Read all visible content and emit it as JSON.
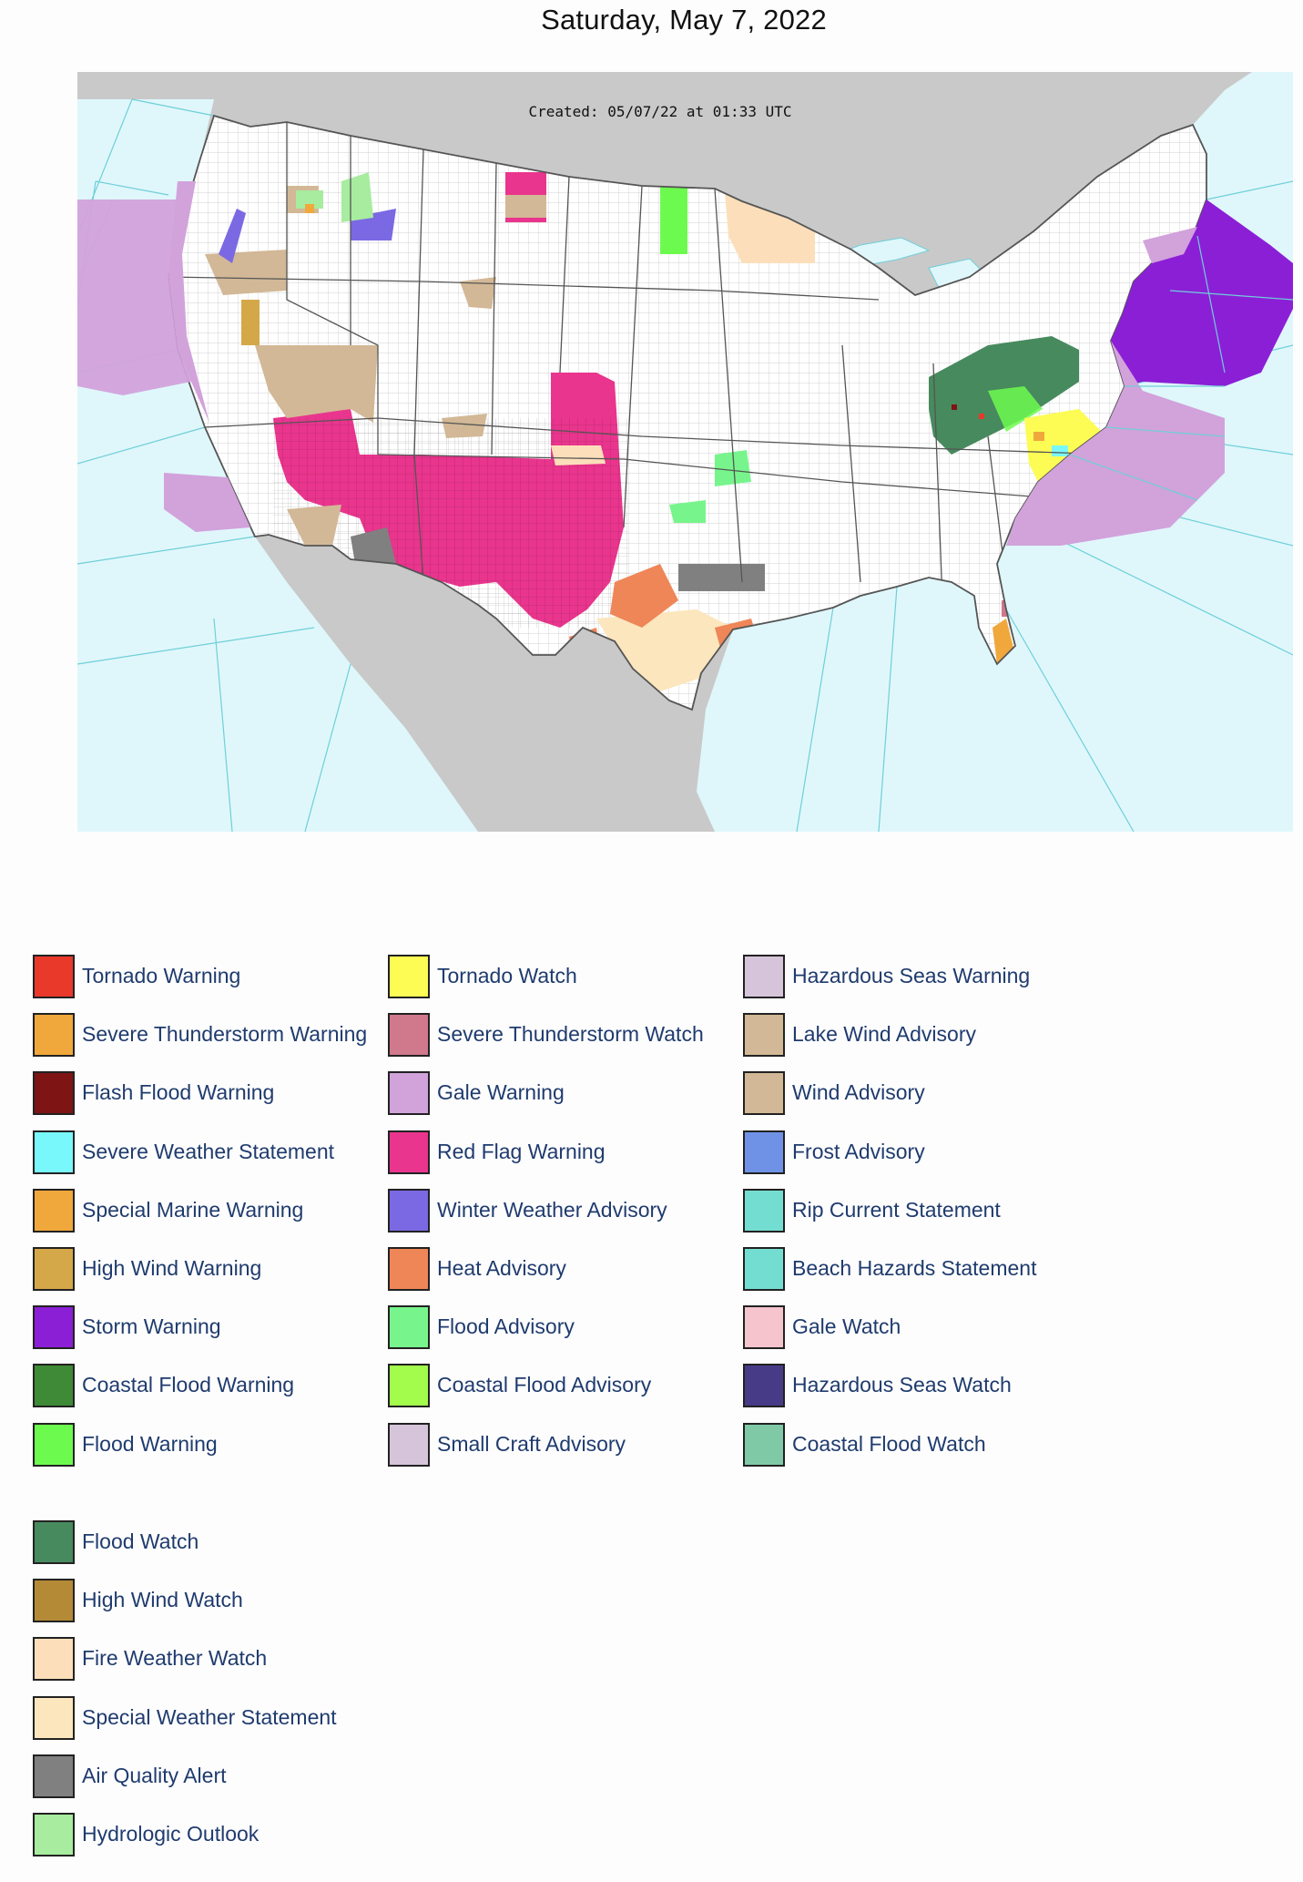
{
  "title": "Saturday, May 7, 2022",
  "map": {
    "created_text": "Created: 05/07/22 at 01:33 UTC",
    "colors": {
      "land": "#ffffff",
      "water": "#dff7fb",
      "outside": "#c9c9c9",
      "borders": "#7f7f7f",
      "marine_lines": "#6fcfd8"
    }
  },
  "legend": [
    {
      "label": "Tornado Warning",
      "color": "#e8392a"
    },
    {
      "label": "Severe Thunderstorm Warning",
      "color": "#f0a83c"
    },
    {
      "label": "Flash Flood Warning",
      "color": "#7e1414"
    },
    {
      "label": "Severe Weather Statement",
      "color": "#79f8fb"
    },
    {
      "label": "Special Marine Warning",
      "color": "#f0a83c"
    },
    {
      "label": "High Wind Warning",
      "color": "#d4a849"
    },
    {
      "label": "Storm Warning",
      "color": "#8b1fd6"
    },
    {
      "label": "Coastal Flood Warning",
      "color": "#3f8a36"
    },
    {
      "label": "Flood Warning",
      "color": "#6dfa4f"
    },
    {
      "label": "Tornado Watch",
      "color": "#fcfc55"
    },
    {
      "label": "Severe Thunderstorm Watch",
      "color": "#d0788c"
    },
    {
      "label": "Gale Warning",
      "color": "#d2a2db"
    },
    {
      "label": "Red Flag Warning",
      "color": "#e9358d"
    },
    {
      "label": "Winter Weather Advisory",
      "color": "#7b69e3"
    },
    {
      "label": "Heat Advisory",
      "color": "#ee8658"
    },
    {
      "label": "Flood Advisory",
      "color": "#77f58c"
    },
    {
      "label": "Coastal Flood Advisory",
      "color": "#a3fb4c"
    },
    {
      "label": "Small Craft Advisory",
      "color": "#d6c5da"
    },
    {
      "label": "Hazardous Seas Warning",
      "color": "#d6c5da"
    },
    {
      "label": "Lake Wind Advisory",
      "color": "#d2b896"
    },
    {
      "label": "Wind Advisory",
      "color": "#d2b896"
    },
    {
      "label": "Frost Advisory",
      "color": "#6f92e6"
    },
    {
      "label": "Rip Current Statement",
      "color": "#74ddd1"
    },
    {
      "label": "Beach Hazards Statement",
      "color": "#74ddd1"
    },
    {
      "label": "Gale Watch",
      "color": "#f5c4cc"
    },
    {
      "label": "Hazardous Seas Watch",
      "color": "#473b87"
    },
    {
      "label": "Coastal Flood Watch",
      "color": "#7fc9a7"
    },
    {
      "label": "Flood Watch",
      "color": "#478a5e"
    },
    {
      "label": "High Wind Watch",
      "color": "#b48a36"
    },
    {
      "label": "Fire Weather Watch",
      "color": "#fcdfba"
    },
    {
      "label": "Special Weather Statement",
      "color": "#fce6bd"
    },
    {
      "label": "Air Quality Alert",
      "color": "#808080"
    },
    {
      "label": "Hydrologic Outlook",
      "color": "#a7ec9f"
    }
  ]
}
